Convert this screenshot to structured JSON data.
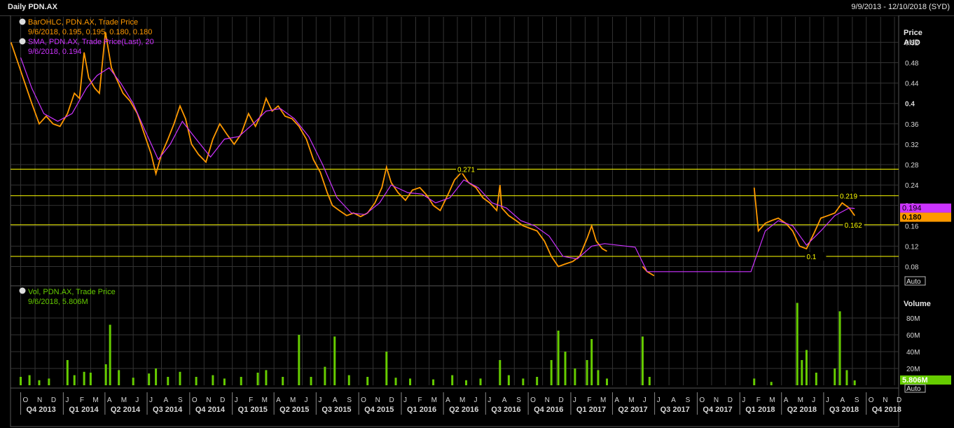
{
  "header": {
    "title": "Daily PDN.AX",
    "date_range": "9/9/2013 - 12/10/2018 (SYD)"
  },
  "colors": {
    "background": "#000000",
    "grid": "#333333",
    "bar": "#ff9900",
    "sma": "#cc33ff",
    "volume": "#66cc00",
    "level_line": "#ffff00",
    "text": "#d8d8d8"
  },
  "legends": {
    "bar": {
      "icon": "dot-icon",
      "line1": "BarOHLC, PDN.AX, Trade Price",
      "line2": "9/6/2018, 0.195, 0.195, 0.180, 0.180"
    },
    "sma": {
      "icon": "dot-icon",
      "line1": "SMA, PDN.AX, Trade Price(Last), 20",
      "line2": "9/6/2018, 0.194"
    },
    "vol": {
      "icon": "dot-icon",
      "line1": "Vol, PDN.AX, Trade Price",
      "line2": "9/6/2018, 5.806M"
    }
  },
  "price_axis": {
    "title_line1": "Price",
    "title_line2": "AUD",
    "ticks": [
      "0.52",
      "0.48",
      "0.44",
      "0.4",
      "0.36",
      "0.32",
      "0.28",
      "0.24",
      "0.2",
      "0.16",
      "0.12",
      "0.08"
    ],
    "tick_values": [
      0.52,
      0.48,
      0.44,
      0.4,
      0.36,
      0.32,
      0.28,
      0.24,
      0.2,
      0.16,
      0.12,
      0.08
    ],
    "ylim": [
      0.045,
      0.57
    ],
    "sma_tag": "0.194",
    "price_tag": "0.180",
    "auto_label": "Auto"
  },
  "volume_axis": {
    "title": "Volume",
    "ticks": [
      "80M",
      "60M",
      "40M",
      "20M"
    ],
    "tick_values": [
      80,
      60,
      40,
      20
    ],
    "ylim": [
      0,
      100
    ],
    "tag": "5.806M",
    "auto_label": "Auto"
  },
  "x_axis": {
    "start": "2013-09-09",
    "end": "2018-12-10",
    "months": [
      "O",
      "N",
      "D",
      "J",
      "F",
      "M",
      "A",
      "M",
      "J",
      "J",
      "A",
      "S",
      "O",
      "N",
      "D",
      "J",
      "F",
      "M",
      "A",
      "M",
      "J",
      "J",
      "A",
      "S",
      "O",
      "N",
      "D",
      "J",
      "F",
      "M",
      "A",
      "M",
      "J",
      "J",
      "A",
      "S",
      "O",
      "N",
      "D",
      "J",
      "F",
      "M",
      "A",
      "M",
      "J",
      "J",
      "A",
      "S",
      "O",
      "N",
      "D",
      "J",
      "F",
      "M",
      "A",
      "M",
      "J",
      "J",
      "A",
      "S",
      "O",
      "N",
      "D"
    ],
    "quarters": [
      "Q4 2013",
      "Q1 2014",
      "Q2 2014",
      "Q3 2014",
      "Q4 2014",
      "Q1 2015",
      "Q2 2015",
      "Q3 2015",
      "Q4 2015",
      "Q1 2016",
      "Q2 2016",
      "Q3 2016",
      "Q4 2016",
      "Q1 2017",
      "Q2 2017",
      "Q3 2017",
      "Q4 2017",
      "Q1 2018",
      "Q2 2018",
      "Q3 2018",
      "Q4 2018"
    ]
  },
  "chart_data": {
    "type": "line",
    "title": "Daily PDN.AX",
    "price_series": {
      "name": "BarOHLC, PDN.AX, Trade Price",
      "points": [
        [
          "2013-09-10",
          0.52
        ],
        [
          "2013-09-25",
          0.48
        ],
        [
          "2013-10-10",
          0.44
        ],
        [
          "2013-10-25",
          0.4
        ],
        [
          "2013-11-10",
          0.36
        ],
        [
          "2013-11-25",
          0.375
        ],
        [
          "2013-12-10",
          0.36
        ],
        [
          "2013-12-25",
          0.355
        ],
        [
          "2014-01-10",
          0.38
        ],
        [
          "2014-01-25",
          0.42
        ],
        [
          "2014-02-05",
          0.41
        ],
        [
          "2014-02-15",
          0.5
        ],
        [
          "2014-02-25",
          0.45
        ],
        [
          "2014-03-10",
          0.43
        ],
        [
          "2014-03-20",
          0.42
        ],
        [
          "2014-04-02",
          0.54
        ],
        [
          "2014-04-15",
          0.47
        ],
        [
          "2014-04-25",
          0.45
        ],
        [
          "2014-05-10",
          0.42
        ],
        [
          "2014-05-25",
          0.405
        ],
        [
          "2014-06-10",
          0.38
        ],
        [
          "2014-06-25",
          0.34
        ],
        [
          "2014-07-10",
          0.3
        ],
        [
          "2014-07-20",
          0.262
        ],
        [
          "2014-08-01",
          0.3
        ],
        [
          "2014-08-15",
          0.33
        ],
        [
          "2014-08-28",
          0.36
        ],
        [
          "2014-09-10",
          0.395
        ],
        [
          "2014-09-22",
          0.37
        ],
        [
          "2014-10-05",
          0.32
        ],
        [
          "2014-10-20",
          0.3
        ],
        [
          "2014-11-05",
          0.285
        ],
        [
          "2014-11-20",
          0.33
        ],
        [
          "2014-12-05",
          0.36
        ],
        [
          "2014-12-20",
          0.34
        ],
        [
          "2015-01-05",
          0.32
        ],
        [
          "2015-01-20",
          0.34
        ],
        [
          "2015-02-05",
          0.38
        ],
        [
          "2015-02-20",
          0.355
        ],
        [
          "2015-03-05",
          0.38
        ],
        [
          "2015-03-15",
          0.41
        ],
        [
          "2015-03-28",
          0.385
        ],
        [
          "2015-04-10",
          0.395
        ],
        [
          "2015-04-25",
          0.375
        ],
        [
          "2015-05-10",
          0.37
        ],
        [
          "2015-05-25",
          0.355
        ],
        [
          "2015-06-10",
          0.33
        ],
        [
          "2015-06-25",
          0.29
        ],
        [
          "2015-07-10",
          0.265
        ],
        [
          "2015-07-25",
          0.225
        ],
        [
          "2015-08-05",
          0.2
        ],
        [
          "2015-08-20",
          0.19
        ],
        [
          "2015-09-05",
          0.18
        ],
        [
          "2015-09-20",
          0.185
        ],
        [
          "2015-10-05",
          0.178
        ],
        [
          "2015-10-20",
          0.185
        ],
        [
          "2015-11-05",
          0.205
        ],
        [
          "2015-11-20",
          0.235
        ],
        [
          "2015-11-30",
          0.275
        ],
        [
          "2015-12-10",
          0.245
        ],
        [
          "2015-12-25",
          0.225
        ],
        [
          "2016-01-10",
          0.21
        ],
        [
          "2016-01-25",
          0.23
        ],
        [
          "2016-02-10",
          0.235
        ],
        [
          "2016-02-25",
          0.22
        ],
        [
          "2016-03-10",
          0.2
        ],
        [
          "2016-03-25",
          0.19
        ],
        [
          "2016-04-10",
          0.22
        ],
        [
          "2016-04-25",
          0.25
        ],
        [
          "2016-05-10",
          0.265
        ],
        [
          "2016-05-25",
          0.245
        ],
        [
          "2016-06-10",
          0.235
        ],
        [
          "2016-06-25",
          0.215
        ],
        [
          "2016-07-10",
          0.205
        ],
        [
          "2016-07-25",
          0.19
        ],
        [
          "2016-08-01",
          0.24
        ],
        [
          "2016-08-05",
          0.195
        ],
        [
          "2016-08-20",
          0.18
        ],
        [
          "2016-09-05",
          0.17
        ],
        [
          "2016-09-20",
          0.16
        ],
        [
          "2016-10-05",
          0.155
        ],
        [
          "2016-10-20",
          0.15
        ],
        [
          "2016-11-05",
          0.13
        ],
        [
          "2016-11-20",
          0.1
        ],
        [
          "2016-12-05",
          0.08
        ],
        [
          "2016-12-20",
          0.085
        ],
        [
          "2017-01-05",
          0.09
        ],
        [
          "2017-01-20",
          0.1
        ],
        [
          "2017-02-05",
          0.135
        ],
        [
          "2017-02-15",
          0.16
        ],
        [
          "2017-02-25",
          0.13
        ],
        [
          "2017-03-10",
          0.115
        ],
        [
          "2017-03-20",
          0.11
        ],
        [
          "2017-06-05",
          0.08
        ],
        [
          "2017-06-15",
          0.07
        ],
        [
          "2017-06-30",
          0.062
        ],
        [
          "2018-02-01",
          0.235
        ],
        [
          "2018-02-10",
          0.15
        ],
        [
          "2018-02-25",
          0.165
        ],
        [
          "2018-03-10",
          0.17
        ],
        [
          "2018-03-25",
          0.175
        ],
        [
          "2018-04-10",
          0.165
        ],
        [
          "2018-04-25",
          0.15
        ],
        [
          "2018-05-10",
          0.12
        ],
        [
          "2018-05-25",
          0.115
        ],
        [
          "2018-06-10",
          0.145
        ],
        [
          "2018-06-25",
          0.175
        ],
        [
          "2018-07-10",
          0.18
        ],
        [
          "2018-07-25",
          0.185
        ],
        [
          "2018-08-10",
          0.205
        ],
        [
          "2018-08-25",
          0.195
        ],
        [
          "2018-09-06",
          0.18
        ]
      ]
    },
    "sma_series": {
      "name": "SMA, PDN.AX, Trade Price(Last), 20",
      "points": [
        [
          "2013-10-01",
          0.49
        ],
        [
          "2013-10-25",
          0.43
        ],
        [
          "2013-11-20",
          0.38
        ],
        [
          "2013-12-20",
          0.365
        ],
        [
          "2014-01-20",
          0.38
        ],
        [
          "2014-02-20",
          0.43
        ],
        [
          "2014-03-15",
          0.455
        ],
        [
          "2014-04-10",
          0.47
        ],
        [
          "2014-05-05",
          0.44
        ],
        [
          "2014-06-01",
          0.4
        ],
        [
          "2014-06-25",
          0.35
        ],
        [
          "2014-07-25",
          0.29
        ],
        [
          "2014-08-20",
          0.32
        ],
        [
          "2014-09-15",
          0.365
        ],
        [
          "2014-10-15",
          0.33
        ],
        [
          "2014-11-15",
          0.295
        ],
        [
          "2014-12-15",
          0.33
        ],
        [
          "2015-01-15",
          0.335
        ],
        [
          "2015-02-15",
          0.36
        ],
        [
          "2015-03-15",
          0.385
        ],
        [
          "2015-04-15",
          0.39
        ],
        [
          "2015-05-15",
          0.37
        ],
        [
          "2015-06-15",
          0.335
        ],
        [
          "2015-07-15",
          0.28
        ],
        [
          "2015-08-15",
          0.215
        ],
        [
          "2015-09-15",
          0.185
        ],
        [
          "2015-10-15",
          0.182
        ],
        [
          "2015-11-15",
          0.205
        ],
        [
          "2015-12-10",
          0.24
        ],
        [
          "2016-01-15",
          0.225
        ],
        [
          "2016-02-15",
          0.222
        ],
        [
          "2016-03-15",
          0.205
        ],
        [
          "2016-04-15",
          0.215
        ],
        [
          "2016-05-15",
          0.25
        ],
        [
          "2016-06-15",
          0.235
        ],
        [
          "2016-07-15",
          0.205
        ],
        [
          "2016-08-15",
          0.195
        ],
        [
          "2016-09-15",
          0.17
        ],
        [
          "2016-10-15",
          0.16
        ],
        [
          "2016-11-15",
          0.14
        ],
        [
          "2016-12-15",
          0.1
        ],
        [
          "2017-01-15",
          0.095
        ],
        [
          "2017-02-15",
          0.12
        ],
        [
          "2017-03-15",
          0.125
        ],
        [
          "2017-05-20",
          0.118
        ],
        [
          "2017-06-15",
          0.07
        ],
        [
          "2018-01-25",
          0.07
        ],
        [
          "2018-02-25",
          0.15
        ],
        [
          "2018-03-25",
          0.17
        ],
        [
          "2018-04-25",
          0.16
        ],
        [
          "2018-05-25",
          0.122
        ],
        [
          "2018-06-25",
          0.15
        ],
        [
          "2018-07-25",
          0.18
        ],
        [
          "2018-08-25",
          0.195
        ],
        [
          "2018-09-06",
          0.194
        ]
      ]
    },
    "volume_series": {
      "name": "Vol, PDN.AX, Trade Price",
      "unit": "M",
      "points": [
        [
          "2013-10-01",
          10
        ],
        [
          "2013-10-20",
          12
        ],
        [
          "2013-11-10",
          6
        ],
        [
          "2013-12-01",
          8
        ],
        [
          "2014-01-10",
          30
        ],
        [
          "2014-01-25",
          12
        ],
        [
          "2014-02-15",
          16
        ],
        [
          "2014-03-01",
          15
        ],
        [
          "2014-04-03",
          25
        ],
        [
          "2014-04-12",
          72
        ],
        [
          "2014-05-01",
          18
        ],
        [
          "2014-06-01",
          9
        ],
        [
          "2014-07-05",
          14
        ],
        [
          "2014-07-20",
          20
        ],
        [
          "2014-08-15",
          10
        ],
        [
          "2014-09-10",
          16
        ],
        [
          "2014-10-15",
          10
        ],
        [
          "2014-11-20",
          12
        ],
        [
          "2014-12-15",
          8
        ],
        [
          "2015-01-20",
          10
        ],
        [
          "2015-02-25",
          15
        ],
        [
          "2015-03-15",
          18
        ],
        [
          "2015-04-20",
          10
        ],
        [
          "2015-05-25",
          60
        ],
        [
          "2015-06-20",
          10
        ],
        [
          "2015-07-20",
          22
        ],
        [
          "2015-08-10",
          58
        ],
        [
          "2015-09-10",
          12
        ],
        [
          "2015-10-20",
          10
        ],
        [
          "2015-11-30",
          40
        ],
        [
          "2015-12-20",
          9
        ],
        [
          "2016-01-20",
          8
        ],
        [
          "2016-03-10",
          7
        ],
        [
          "2016-04-20",
          12
        ],
        [
          "2016-05-20",
          6
        ],
        [
          "2016-06-20",
          8
        ],
        [
          "2016-08-01",
          30
        ],
        [
          "2016-08-20",
          12
        ],
        [
          "2016-09-20",
          8
        ],
        [
          "2016-10-20",
          10
        ],
        [
          "2016-11-20",
          30
        ],
        [
          "2016-12-05",
          65
        ],
        [
          "2016-12-20",
          40
        ],
        [
          "2017-01-10",
          20
        ],
        [
          "2017-02-05",
          30
        ],
        [
          "2017-02-15",
          55
        ],
        [
          "2017-03-01",
          18
        ],
        [
          "2017-03-20",
          8
        ],
        [
          "2017-06-05",
          58
        ],
        [
          "2017-06-20",
          10
        ],
        [
          "2018-02-01",
          8
        ],
        [
          "2018-03-10",
          4
        ],
        [
          "2018-05-05",
          98
        ],
        [
          "2018-05-15",
          30
        ],
        [
          "2018-05-25",
          42
        ],
        [
          "2018-06-15",
          15
        ],
        [
          "2018-07-25",
          20
        ],
        [
          "2018-08-05",
          88
        ],
        [
          "2018-08-20",
          18
        ],
        [
          "2018-09-06",
          5.806
        ]
      ]
    },
    "levels": [
      {
        "value": 0.271,
        "label": "0.271",
        "label_date": "2016-05-01"
      },
      {
        "value": 0.219,
        "label": "0.219",
        "label_date": "2018-08-05"
      },
      {
        "value": 0.162,
        "label": "0.162",
        "label_date": "2018-08-15"
      },
      {
        "value": 0.1,
        "label": "0.1",
        "label_date": "2018-05-25"
      }
    ]
  }
}
